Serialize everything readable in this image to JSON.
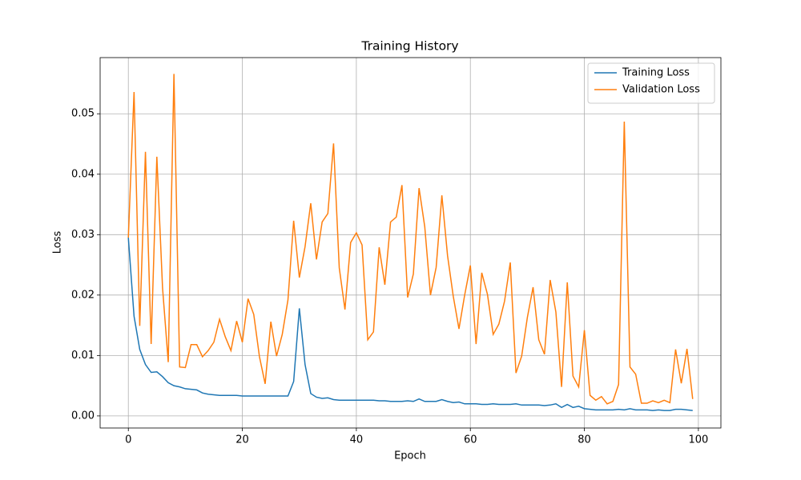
{
  "chart_data": {
    "type": "line",
    "title": "Training History",
    "x_label": "Epoch",
    "y_label": "Loss",
    "x": [
      0,
      1,
      2,
      3,
      4,
      5,
      6,
      7,
      8,
      9,
      10,
      11,
      12,
      13,
      14,
      15,
      16,
      17,
      18,
      19,
      20,
      21,
      22,
      23,
      24,
      25,
      26,
      27,
      28,
      29,
      30,
      31,
      32,
      33,
      34,
      35,
      36,
      37,
      38,
      39,
      40,
      41,
      42,
      43,
      44,
      45,
      46,
      47,
      48,
      49,
      50,
      51,
      52,
      53,
      54,
      55,
      56,
      57,
      58,
      59,
      60,
      61,
      62,
      63,
      64,
      65,
      66,
      67,
      68,
      69,
      70,
      71,
      72,
      73,
      74,
      75,
      76,
      77,
      78,
      79,
      80,
      81,
      82,
      83,
      84,
      85,
      86,
      87,
      88,
      89,
      90,
      91,
      92,
      93,
      94,
      95,
      96,
      97,
      98,
      99
    ],
    "series": [
      {
        "name": "Training Loss",
        "color": "#1f77b4",
        "values": [
          0.0295,
          0.0165,
          0.011,
          0.0085,
          0.0072,
          0.0073,
          0.0065,
          0.0055,
          0.005,
          0.0048,
          0.0045,
          0.0044,
          0.0043,
          0.0038,
          0.0036,
          0.0035,
          0.0034,
          0.0034,
          0.0034,
          0.0034,
          0.0033,
          0.0033,
          0.0033,
          0.0033,
          0.0033,
          0.0033,
          0.0033,
          0.0033,
          0.0033,
          0.0057,
          0.0178,
          0.0085,
          0.0037,
          0.0031,
          0.0029,
          0.003,
          0.0027,
          0.0026,
          0.0026,
          0.0026,
          0.0026,
          0.0026,
          0.0026,
          0.0026,
          0.0025,
          0.0025,
          0.0024,
          0.0024,
          0.0024,
          0.0025,
          0.0024,
          0.0028,
          0.0024,
          0.0024,
          0.0024,
          0.0027,
          0.0024,
          0.0022,
          0.0023,
          0.002,
          0.002,
          0.002,
          0.0019,
          0.0019,
          0.002,
          0.0019,
          0.0019,
          0.0019,
          0.002,
          0.0018,
          0.0018,
          0.0018,
          0.0018,
          0.0017,
          0.0018,
          0.002,
          0.0014,
          0.0019,
          0.0014,
          0.0016,
          0.0012,
          0.0011,
          0.001,
          0.001,
          0.001,
          0.001,
          0.0011,
          0.001,
          0.0012,
          0.001,
          0.001,
          0.001,
          0.0009,
          0.001,
          0.0009,
          0.0009,
          0.0011,
          0.0011,
          0.001,
          0.0009
        ]
      },
      {
        "name": "Validation Loss",
        "color": "#ff7f0e",
        "values": [
          0.0295,
          0.0536,
          0.0149,
          0.0437,
          0.0119,
          0.0429,
          0.0212,
          0.0089,
          0.0566,
          0.0081,
          0.008,
          0.0118,
          0.0118,
          0.0098,
          0.0108,
          0.0122,
          0.016,
          0.0131,
          0.0108,
          0.0157,
          0.0122,
          0.0194,
          0.0168,
          0.0098,
          0.0053,
          0.0156,
          0.0099,
          0.0135,
          0.0192,
          0.0323,
          0.0229,
          0.028,
          0.0352,
          0.0259,
          0.0321,
          0.0335,
          0.0451,
          0.0245,
          0.0176,
          0.0287,
          0.0303,
          0.0283,
          0.0126,
          0.0139,
          0.0279,
          0.0217,
          0.0321,
          0.0329,
          0.0382,
          0.0196,
          0.0235,
          0.0377,
          0.0313,
          0.02,
          0.0246,
          0.0365,
          0.0265,
          0.0198,
          0.0144,
          0.02,
          0.0249,
          0.0119,
          0.0237,
          0.0201,
          0.0135,
          0.0152,
          0.019,
          0.0254,
          0.0071,
          0.0099,
          0.0163,
          0.0213,
          0.0126,
          0.0102,
          0.0225,
          0.0172,
          0.0048,
          0.0221,
          0.0066,
          0.0048,
          0.0142,
          0.0034,
          0.0026,
          0.0032,
          0.002,
          0.0024,
          0.0052,
          0.0487,
          0.0081,
          0.0069,
          0.0021,
          0.0021,
          0.0025,
          0.0022,
          0.0026,
          0.0022,
          0.011,
          0.0054,
          0.0111,
          0.0028
        ]
      }
    ],
    "xlim": [
      -4.95,
      103.95
    ],
    "xticks": [
      0,
      20,
      40,
      60,
      80,
      100
    ],
    "ylim": [
      -0.002,
      0.0593
    ],
    "yticks": [
      {
        "value": 0,
        "label": "0.00"
      },
      0.01,
      0.02,
      0.03,
      0.04,
      0.05
    ],
    "grid": true,
    "legend": "upper right"
  }
}
